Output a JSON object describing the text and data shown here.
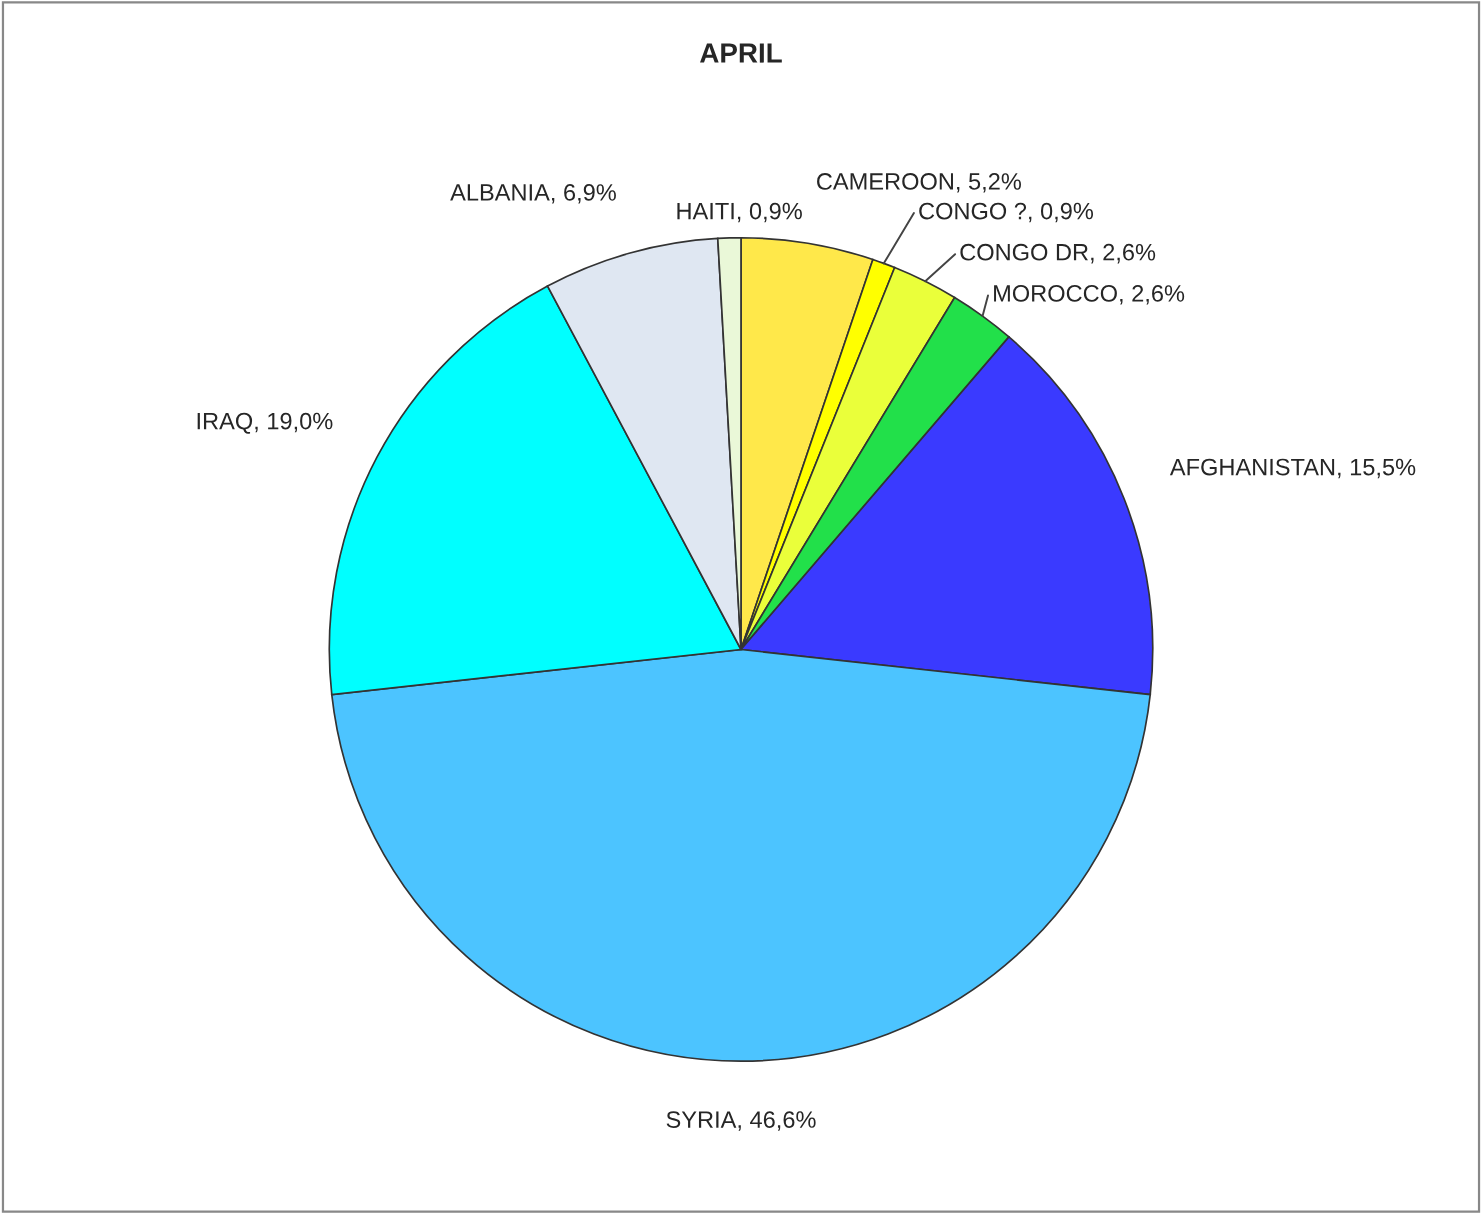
{
  "chart_data": {
    "type": "pie",
    "title": "APRIL",
    "categories": [
      "CAMEROON",
      "CONGO ?",
      "CONGO DR",
      "MOROCCO",
      "AFGHANISTAN",
      "SYRIA",
      "IRAQ",
      "ALBANIA",
      "HAITI"
    ],
    "values": [
      5.2,
      0.9,
      2.6,
      2.6,
      15.5,
      46.6,
      19.0,
      6.9,
      0.9
    ],
    "value_labels": [
      "5,2%",
      "0,9%",
      "2,6%",
      "2,6%",
      "15,5%",
      "46,6%",
      "19,0%",
      "6,9%",
      "0,9%"
    ],
    "colors": [
      "#ffe84a",
      "#ffff00",
      "#eaff3a",
      "#22e04a",
      "#3a3aff",
      "#4cc4ff",
      "#00ffff",
      "#dfe7f2",
      "#eaf8d8"
    ]
  }
}
